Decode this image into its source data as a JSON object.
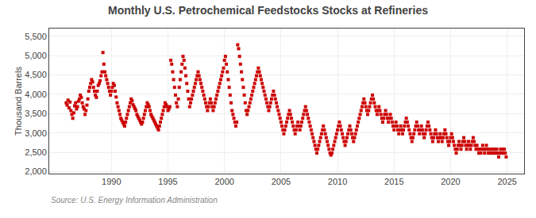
{
  "chart_data": {
    "type": "scatter",
    "title": "Monthly U.S. Petrochemical Feedstocks Stocks at Refineries",
    "ylabel": "Thousand Barrels",
    "annotations": [
      "Source: U.S. Energy Information Administration"
    ],
    "color": "#cc0000",
    "marker": "square",
    "grid": true,
    "xlim": [
      1984.5,
      2026.5
    ],
    "xticks": [
      1990,
      1995,
      2000,
      2005,
      2010,
      2015,
      2020,
      2025
    ],
    "ylim": [
      1950,
      5700
    ],
    "yticks": [
      {
        "value": 2000,
        "label": "2,000"
      },
      {
        "value": 2500,
        "label": "2,500"
      },
      {
        "value": 3000,
        "label": "3,000"
      },
      {
        "value": 3500,
        "label": "3,500"
      },
      {
        "value": 4000,
        "label": "4,000"
      },
      {
        "value": 4500,
        "label": "4,500"
      },
      {
        "value": 5000,
        "label": "5,000"
      },
      {
        "value": 5500,
        "label": "5,500"
      }
    ],
    "x": [
      1986.0,
      1986.083,
      1986.167,
      1986.25,
      1986.333,
      1986.417,
      1986.5,
      1986.583,
      1986.667,
      1986.75,
      1986.833,
      1986.917,
      1987.0,
      1987.083,
      1987.167,
      1987.25,
      1987.333,
      1987.417,
      1987.5,
      1987.583,
      1987.667,
      1987.75,
      1987.833,
      1987.917,
      1988.0,
      1988.083,
      1988.167,
      1988.25,
      1988.333,
      1988.417,
      1988.5,
      1988.583,
      1988.667,
      1988.75,
      1988.833,
      1988.917,
      1989.0,
      1989.083,
      1989.167,
      1989.25,
      1989.333,
      1989.417,
      1989.5,
      1989.583,
      1989.667,
      1989.75,
      1989.833,
      1989.917,
      1990.0,
      1990.083,
      1990.167,
      1990.25,
      1990.333,
      1990.417,
      1990.5,
      1990.583,
      1990.667,
      1990.75,
      1990.833,
      1990.917,
      1991.0,
      1991.083,
      1991.167,
      1991.25,
      1991.333,
      1991.417,
      1991.5,
      1991.583,
      1991.667,
      1991.75,
      1991.833,
      1991.917,
      1992.0,
      1992.083,
      1992.167,
      1992.25,
      1992.333,
      1992.417,
      1992.5,
      1992.583,
      1992.667,
      1992.75,
      1992.833,
      1992.917,
      1993.0,
      1993.083,
      1993.167,
      1993.25,
      1993.333,
      1993.417,
      1993.5,
      1993.583,
      1993.667,
      1993.75,
      1993.833,
      1993.917,
      1994.0,
      1994.083,
      1994.167,
      1994.25,
      1994.333,
      1994.417,
      1994.5,
      1994.583,
      1994.667,
      1994.75,
      1994.833,
      1994.917,
      1995.0,
      1995.083,
      1995.167,
      1995.25,
      1995.333,
      1995.417,
      1995.5,
      1995.583,
      1995.667,
      1995.75,
      1995.833,
      1995.917,
      1996.0,
      1996.083,
      1996.167,
      1996.25,
      1996.333,
      1996.417,
      1996.5,
      1996.583,
      1996.667,
      1996.75,
      1996.833,
      1996.917,
      1997.0,
      1997.083,
      1997.167,
      1997.25,
      1997.333,
      1997.417,
      1997.5,
      1997.583,
      1997.667,
      1997.75,
      1997.833,
      1997.917,
      1998.0,
      1998.083,
      1998.167,
      1998.25,
      1998.333,
      1998.417,
      1998.5,
      1998.583,
      1998.667,
      1998.75,
      1998.833,
      1998.917,
      1999.0,
      1999.083,
      1999.167,
      1999.25,
      1999.333,
      1999.417,
      1999.5,
      1999.583,
      1999.667,
      1999.75,
      1999.833,
      1999.917,
      2000.0,
      2000.083,
      2000.167,
      2000.25,
      2000.333,
      2000.417,
      2000.5,
      2000.583,
      2000.667,
      2000.75,
      2000.833,
      2000.917,
      2001.0,
      2001.083,
      2001.167,
      2001.25,
      2001.333,
      2001.417,
      2001.5,
      2001.583,
      2001.667,
      2001.75,
      2001.833,
      2001.917,
      2002.0,
      2002.083,
      2002.167,
      2002.25,
      2002.333,
      2002.417,
      2002.5,
      2002.583,
      2002.667,
      2002.75,
      2002.833,
      2002.917,
      2003.0,
      2003.083,
      2003.167,
      2003.25,
      2003.333,
      2003.417,
      2003.5,
      2003.583,
      2003.667,
      2003.75,
      2003.833,
      2003.917,
      2004.0,
      2004.083,
      2004.167,
      2004.25,
      2004.333,
      2004.417,
      2004.5,
      2004.583,
      2004.667,
      2004.75,
      2004.833,
      2004.917,
      2005.0,
      2005.083,
      2005.167,
      2005.25,
      2005.333,
      2005.417,
      2005.5,
      2005.583,
      2005.667,
      2005.75,
      2005.833,
      2005.917,
      2006.0,
      2006.083,
      2006.167,
      2006.25,
      2006.333,
      2006.417,
      2006.5,
      2006.583,
      2006.667,
      2006.75,
      2006.833,
      2006.917,
      2007.0,
      2007.083,
      2007.167,
      2007.25,
      2007.333,
      2007.417,
      2007.5,
      2007.583,
      2007.667,
      2007.75,
      2007.833,
      2007.917,
      2008.0,
      2008.083,
      2008.167,
      2008.25,
      2008.333,
      2008.417,
      2008.5,
      2008.583,
      2008.667,
      2008.75,
      2008.833,
      2008.917,
      2009.0,
      2009.083,
      2009.167,
      2009.25,
      2009.333,
      2009.417,
      2009.5,
      2009.583,
      2009.667,
      2009.75,
      2009.833,
      2009.917,
      2010.0,
      2010.083,
      2010.167,
      2010.25,
      2010.333,
      2010.417,
      2010.5,
      2010.583,
      2010.667,
      2010.75,
      2010.833,
      2010.917,
      2011.0,
      2011.083,
      2011.167,
      2011.25,
      2011.333,
      2011.417,
      2011.5,
      2011.583,
      2011.667,
      2011.75,
      2011.833,
      2011.917,
      2012.0,
      2012.083,
      2012.167,
      2012.25,
      2012.333,
      2012.417,
      2012.5,
      2012.583,
      2012.667,
      2012.75,
      2012.833,
      2012.917,
      2013.0,
      2013.083,
      2013.167,
      2013.25,
      2013.333,
      2013.417,
      2013.5,
      2013.583,
      2013.667,
      2013.75,
      2013.833,
      2013.917,
      2014.0,
      2014.083,
      2014.167,
      2014.25,
      2014.333,
      2014.417,
      2014.5,
      2014.583,
      2014.667,
      2014.75,
      2014.833,
      2014.917,
      2015.0,
      2015.083,
      2015.167,
      2015.25,
      2015.333,
      2015.417,
      2015.5,
      2015.583,
      2015.667,
      2015.75,
      2015.833,
      2015.917,
      2016.0,
      2016.083,
      2016.167,
      2016.25,
      2016.333,
      2016.417,
      2016.5,
      2016.583,
      2016.667,
      2016.75,
      2016.833,
      2016.917,
      2017.0,
      2017.083,
      2017.167,
      2017.25,
      2017.333,
      2017.417,
      2017.5,
      2017.583,
      2017.667,
      2017.75,
      2017.833,
      2017.917,
      2018.0,
      2018.083,
      2018.167,
      2018.25,
      2018.333,
      2018.417,
      2018.5,
      2018.583,
      2018.667,
      2018.75,
      2018.833,
      2018.917,
      2019.0,
      2019.083,
      2019.167,
      2019.25,
      2019.333,
      2019.417,
      2019.5,
      2019.583,
      2019.667,
      2019.75,
      2019.833,
      2019.917,
      2020.0,
      2020.083,
      2020.167,
      2020.25,
      2020.333,
      2020.417,
      2020.5,
      2020.583,
      2020.667,
      2020.75,
      2020.833,
      2020.917,
      2021.0,
      2021.083,
      2021.167,
      2021.25,
      2021.333,
      2021.417,
      2021.5,
      2021.583,
      2021.667,
      2021.75,
      2021.833,
      2021.917,
      2022.0,
      2022.083,
      2022.167,
      2022.25,
      2022.333,
      2022.417,
      2022.5,
      2022.583,
      2022.667,
      2022.75,
      2022.833,
      2022.917,
      2023.0,
      2023.083,
      2023.167,
      2023.25,
      2023.333,
      2023.417,
      2023.5,
      2023.583,
      2023.667,
      2023.75,
      2023.833,
      2023.917,
      2024.0,
      2024.083,
      2024.167,
      2024.25,
      2024.333,
      2024.417,
      2024.5,
      2024.583,
      2024.667,
      2024.75,
      2024.833,
      2024.917
    ],
    "values": [
      3780,
      3720,
      3850,
      3650,
      3800,
      3580,
      3480,
      3380,
      3520,
      3700,
      3780,
      3620,
      3680,
      3820,
      3880,
      3980,
      3920,
      3780,
      3680,
      3620,
      3480,
      3580,
      3720,
      3880,
      4080,
      4180,
      4280,
      4380,
      4320,
      4180,
      4080,
      3980,
      3920,
      4080,
      4230,
      4280,
      4350,
      4480,
      4580,
      5080,
      4780,
      4580,
      4480,
      4380,
      4280,
      4180,
      4080,
      3980,
      4080,
      4180,
      4280,
      4230,
      4080,
      3930,
      3780,
      3680,
      3580,
      3480,
      3380,
      3330,
      3280,
      3230,
      3180,
      3280,
      3380,
      3480,
      3580,
      3680,
      3780,
      3880,
      3830,
      3730,
      3680,
      3630,
      3580,
      3480,
      3430,
      3380,
      3330,
      3280,
      3230,
      3280,
      3380,
      3480,
      3580,
      3680,
      3780,
      3730,
      3680,
      3580,
      3480,
      3430,
      3380,
      3330,
      3280,
      3230,
      3180,
      3130,
      3080,
      3180,
      3280,
      3380,
      3480,
      3580,
      3680,
      3780,
      3730,
      3680,
      3580,
      3620,
      3680,
      4880,
      4780,
      4580,
      4380,
      4180,
      3980,
      3780,
      3680,
      3880,
      4180,
      4380,
      4580,
      4780,
      4980,
      4880,
      4680,
      4480,
      4280,
      4080,
      3880,
      3680,
      3780,
      3880,
      3980,
      4080,
      4180,
      4280,
      4380,
      4480,
      4580,
      4480,
      4380,
      4280,
      4180,
      4080,
      3980,
      3880,
      3780,
      3680,
      3580,
      3680,
      3780,
      3880,
      3780,
      3680,
      3580,
      3680,
      3780,
      3880,
      3980,
      4080,
      4180,
      4280,
      4380,
      4480,
      4580,
      4680,
      4880,
      4980,
      4780,
      4580,
      4380,
      4180,
      3980,
      3780,
      3580,
      3480,
      3380,
      3280,
      3180,
      3280,
      5280,
      5180,
      4980,
      4780,
      4580,
      4380,
      4180,
      3980,
      3780,
      3580,
      3480,
      3580,
      3680,
      3780,
      3880,
      3980,
      4080,
      4180,
      4280,
      4380,
      4480,
      4580,
      4680,
      4580,
      4480,
      4380,
      4280,
      4180,
      4080,
      3980,
      3880,
      3780,
      3680,
      3580,
      3680,
      3780,
      3880,
      3980,
      4080,
      3980,
      3880,
      3780,
      3680,
      3580,
      3480,
      3380,
      3280,
      3180,
      3080,
      2980,
      3080,
      3180,
      3280,
      3380,
      3480,
      3580,
      3480,
      3380,
      3280,
      3180,
      3080,
      2980,
      3080,
      3180,
      3280,
      3180,
      3080,
      3180,
      3280,
      3380,
      3480,
      3580,
      3680,
      3580,
      3480,
      3380,
      3280,
      3180,
      3080,
      2980,
      2880,
      2780,
      2680,
      2580,
      2480,
      2580,
      2680,
      2780,
      2880,
      2980,
      3080,
      3180,
      3080,
      2980,
      2880,
      2780,
      2680,
      2580,
      2480,
      2430,
      2480,
      2580,
      2680,
      2780,
      2880,
      2980,
      3080,
      3180,
      3280,
      3180,
      3080,
      2980,
      2880,
      2780,
      2680,
      2780,
      2880,
      2980,
      3080,
      3180,
      3080,
      2980,
      2880,
      2780,
      2880,
      2980,
      3080,
      3180,
      3280,
      3380,
      3480,
      3580,
      3680,
      3780,
      3880,
      3780,
      3680,
      3580,
      3480,
      3580,
      3680,
      3780,
      3880,
      3980,
      3880,
      3780,
      3680,
      3580,
      3480,
      3580,
      3680,
      3580,
      3480,
      3380,
      3280,
      3380,
      3480,
      3580,
      3480,
      3380,
      3280,
      3380,
      3480,
      3380,
      3280,
      3180,
      3080,
      3180,
      3280,
      3180,
      3080,
      2980,
      3080,
      3180,
      3080,
      2980,
      3080,
      3180,
      3280,
      3380,
      3280,
      3180,
      3080,
      2980,
      2880,
      2780,
      2880,
      2980,
      3080,
      3180,
      3280,
      3180,
      3080,
      2980,
      3080,
      3180,
      3080,
      2980,
      2880,
      2980,
      3080,
      3180,
      3280,
      3180,
      3080,
      2980,
      2880,
      2780,
      2880,
      2980,
      3080,
      2980,
      2880,
      2780,
      2880,
      2980,
      2880,
      2780,
      2880,
      2980,
      3080,
      2980,
      2880,
      2780,
      2680,
      2780,
      2880,
      2980,
      2880,
      2780,
      2680,
      2580,
      2480,
      2580,
      2680,
      2780,
      2680,
      2580,
      2680,
      2780,
      2880,
      2780,
      2680,
      2580,
      2680,
      2780,
      2680,
      2580,
      2680,
      2780,
      2880,
      2780,
      2680,
      2580,
      2680,
      2580,
      2480,
      2580,
      2480,
      2580,
      2680,
      2580,
      2480,
      2580,
      2680,
      2580,
      2480,
      2580,
      2480,
      2580,
      2480,
      2580,
      2480,
      2580,
      2480,
      2580,
      2480,
      2380,
      2480,
      2580,
      2480,
      2580,
      2480,
      2580,
      2480,
      2380
    ]
  }
}
